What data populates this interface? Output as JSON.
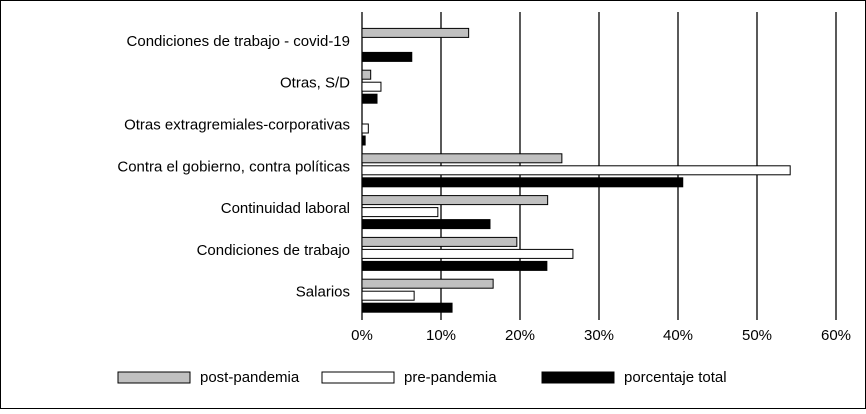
{
  "chart_data": {
    "type": "bar",
    "orientation": "horizontal",
    "categories": [
      "Condiciones de trabajo - covid-19",
      "Otras, S/D",
      "Otras extragremiales-corporativas",
      "Contra el gobierno, contra políticas",
      "Continuidad laboral",
      "Condiciones de trabajo",
      "Salarios"
    ],
    "series": [
      {
        "name": "post-pandemia",
        "color": "#c0c0c0",
        "values": [
          13.5,
          1.1,
          null,
          25.3,
          23.5,
          19.6,
          16.6
        ]
      },
      {
        "name": "pre-pandemia",
        "color": "#ffffff",
        "values": [
          null,
          2.4,
          0.8,
          54.2,
          9.6,
          26.7,
          6.6
        ]
      },
      {
        "name": "porcentaje total",
        "color": "#000000",
        "values": [
          6.3,
          1.9,
          0.4,
          40.6,
          16.2,
          23.4,
          11.4
        ]
      }
    ],
    "xlim": [
      0,
      60
    ],
    "xticks": [
      {
        "value": 0,
        "label": "0%"
      },
      {
        "value": 10,
        "label": "10%"
      },
      {
        "value": 20,
        "label": "20%"
      },
      {
        "value": 30,
        "label": "30%"
      },
      {
        "value": 40,
        "label": "40%"
      },
      {
        "value": 50,
        "label": "50%"
      },
      {
        "value": 60,
        "label": "60%"
      }
    ],
    "grid": true,
    "legend": "bottom"
  }
}
